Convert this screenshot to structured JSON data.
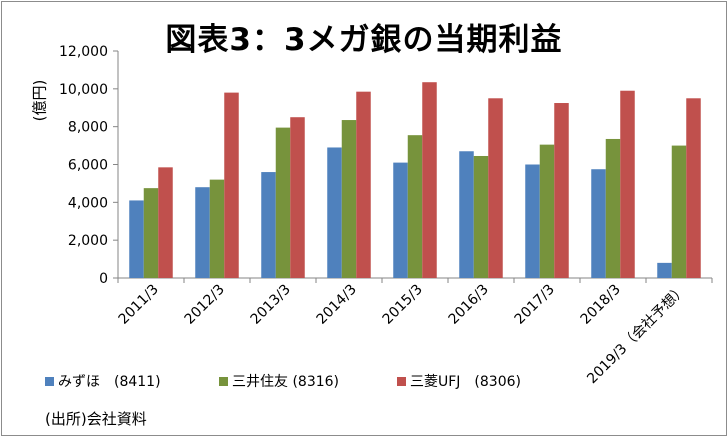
{
  "chart_data": {
    "type": "bar",
    "title": "図表3：3メガ銀の当期利益",
    "ylabel": "(億円)",
    "ylim": [
      0,
      12000
    ],
    "yticks": [
      "0",
      "2,000",
      "4,000",
      "6,000",
      "8,000",
      "10,000",
      "12,000"
    ],
    "categories": [
      "2011/3",
      "2012/3",
      "2013/3",
      "2014/3",
      "2015/3",
      "2016/3",
      "2017/3",
      "2018/3",
      "2019/3（会社予想）"
    ],
    "series": [
      {
        "name": "みずほ　(8411)",
        "color": "#4f81bd",
        "values": [
          4100,
          4800,
          5600,
          6900,
          6100,
          6700,
          6000,
          5750,
          800
        ]
      },
      {
        "name": "三井住友 (8316)",
        "color": "#77933c",
        "values": [
          4750,
          5200,
          7950,
          8350,
          7550,
          6450,
          7050,
          7350,
          7000
        ]
      },
      {
        "name": "三菱UFJ　(8306)",
        "color": "#c0504d",
        "values": [
          5850,
          9800,
          8500,
          9850,
          10350,
          9500,
          9250,
          9900,
          9500
        ]
      }
    ],
    "grid": false,
    "legend": "bottom"
  },
  "source": "(出所)会社資料"
}
